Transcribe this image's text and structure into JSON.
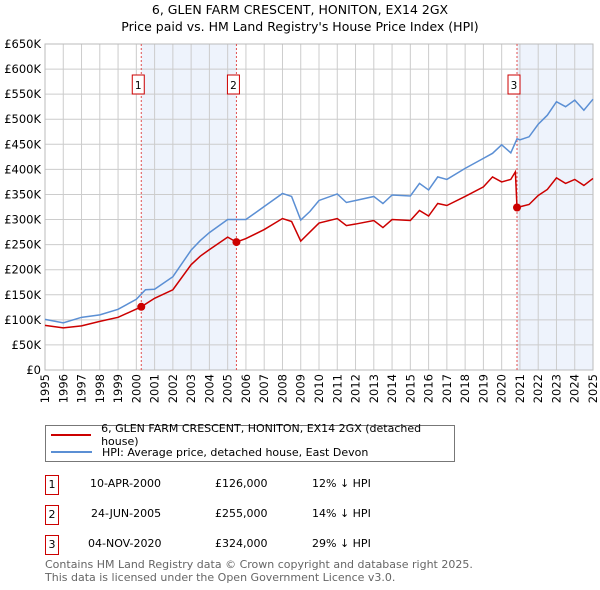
{
  "title": "6, GLEN FARM CRESCENT, HONITON, EX14 2GX",
  "subtitle": "Price paid vs. HM Land Registry's House Price Index (HPI)",
  "colors": {
    "property": "#cc0000",
    "hpi": "#5b8fd4",
    "shade": "#eef3fc",
    "grid": "#cccccc"
  },
  "chart_data": {
    "type": "line",
    "xlim": [
      1995,
      2025
    ],
    "ylim": [
      0,
      650000
    ],
    "x_ticks": [
      "1995",
      "1996",
      "1997",
      "1998",
      "1999",
      "2000",
      "2001",
      "2002",
      "2003",
      "2004",
      "2005",
      "2006",
      "2007",
      "2008",
      "2009",
      "2010",
      "2011",
      "2012",
      "2013",
      "2014",
      "2015",
      "2016",
      "2017",
      "2018",
      "2019",
      "2020",
      "2021",
      "2022",
      "2023",
      "2024",
      "2025"
    ],
    "y_ticks": [
      {
        "v": 0,
        "label": "£0"
      },
      {
        "v": 50000,
        "label": "£50K"
      },
      {
        "v": 100000,
        "label": "£100K"
      },
      {
        "v": 150000,
        "label": "£150K"
      },
      {
        "v": 200000,
        "label": "£200K"
      },
      {
        "v": 250000,
        "label": "£250K"
      },
      {
        "v": 300000,
        "label": "£300K"
      },
      {
        "v": 350000,
        "label": "£350K"
      },
      {
        "v": 400000,
        "label": "£400K"
      },
      {
        "v": 450000,
        "label": "£450K"
      },
      {
        "v": 500000,
        "label": "£500K"
      },
      {
        "v": 550000,
        "label": "£550K"
      },
      {
        "v": 600000,
        "label": "£600K"
      },
      {
        "v": 650000,
        "label": "£650K"
      }
    ],
    "shaded_ranges": [
      [
        2000.27,
        2005.48
      ],
      [
        2020.84,
        2025
      ]
    ],
    "series": [
      {
        "name": "6, GLEN FARM CRESCENT, HONITON, EX14 2GX (detached house)",
        "color": "#cc0000",
        "x": [
          1995,
          1996,
          1997,
          1998,
          1999,
          2000.27,
          2001,
          2002,
          2003,
          2003.5,
          2004,
          2005,
          2005.48,
          2006,
          2007,
          2008,
          2008.5,
          2009,
          2009.5,
          2010,
          2011,
          2011.5,
          2012,
          2013,
          2013.5,
          2014,
          2015,
          2015.5,
          2016,
          2016.5,
          2017,
          2018,
          2019,
          2019.5,
          2020,
          2020.5,
          2020.75,
          2020.84,
          2021.5,
          2022,
          2022.5,
          2023,
          2023.5,
          2024,
          2024.5,
          2025
        ],
        "y": [
          89000,
          84000,
          88000,
          97000,
          105000,
          126000,
          143000,
          160000,
          210000,
          227000,
          240000,
          265000,
          255000,
          262000,
          280000,
          302000,
          296000,
          257000,
          275000,
          293000,
          302000,
          288000,
          291000,
          298000,
          284000,
          300000,
          298000,
          318000,
          307000,
          332000,
          328000,
          346000,
          365000,
          385000,
          375000,
          380000,
          395000,
          324000,
          330000,
          348000,
          360000,
          383000,
          372000,
          380000,
          368000,
          382000
        ]
      },
      {
        "name": "HPI: Average price, detached house, East Devon",
        "color": "#5b8fd4",
        "x": [
          1995,
          1996,
          1997,
          1998,
          1999,
          2000,
          2000.5,
          2001,
          2002,
          2003,
          2003.5,
          2004,
          2005,
          2006,
          2007,
          2008,
          2008.5,
          2009,
          2009.5,
          2010,
          2011,
          2011.5,
          2012,
          2013,
          2013.5,
          2014,
          2015,
          2015.5,
          2016,
          2016.5,
          2017,
          2018,
          2019,
          2019.5,
          2020,
          2020.5,
          2020.84,
          2021,
          2021.5,
          2022,
          2022.5,
          2023,
          2023.5,
          2024,
          2024.5,
          2025
        ],
        "y": [
          101000,
          94000,
          105000,
          110000,
          121000,
          141000,
          160000,
          161000,
          186000,
          239000,
          258000,
          274000,
          300000,
          300000,
          326000,
          352000,
          346000,
          299000,
          316000,
          338000,
          351000,
          334000,
          338000,
          346000,
          332000,
          349000,
          347000,
          372000,
          359000,
          385000,
          380000,
          402000,
          422000,
          432000,
          449000,
          433000,
          461000,
          459000,
          465000,
          490000,
          508000,
          535000,
          525000,
          538000,
          518000,
          540000
        ]
      }
    ],
    "sales": [
      {
        "id": "1",
        "x": 2000.27,
        "price": 126000,
        "date": "10-APR-2000",
        "price_label": "£126,000",
        "hpi_diff": "12% ↓ HPI"
      },
      {
        "id": "2",
        "x": 2005.48,
        "price": 255000,
        "date": "24-JUN-2005",
        "price_label": "£255,000",
        "hpi_diff": "14% ↓ HPI"
      },
      {
        "id": "3",
        "x": 2020.84,
        "price": 324000,
        "date": "04-NOV-2020",
        "price_label": "£324,000",
        "hpi_diff": "29% ↓ HPI"
      }
    ]
  },
  "footer": {
    "line1": "Contains HM Land Registry data © Crown copyright and database right 2025.",
    "line2": "This data is licensed under the Open Government Licence v3.0."
  }
}
